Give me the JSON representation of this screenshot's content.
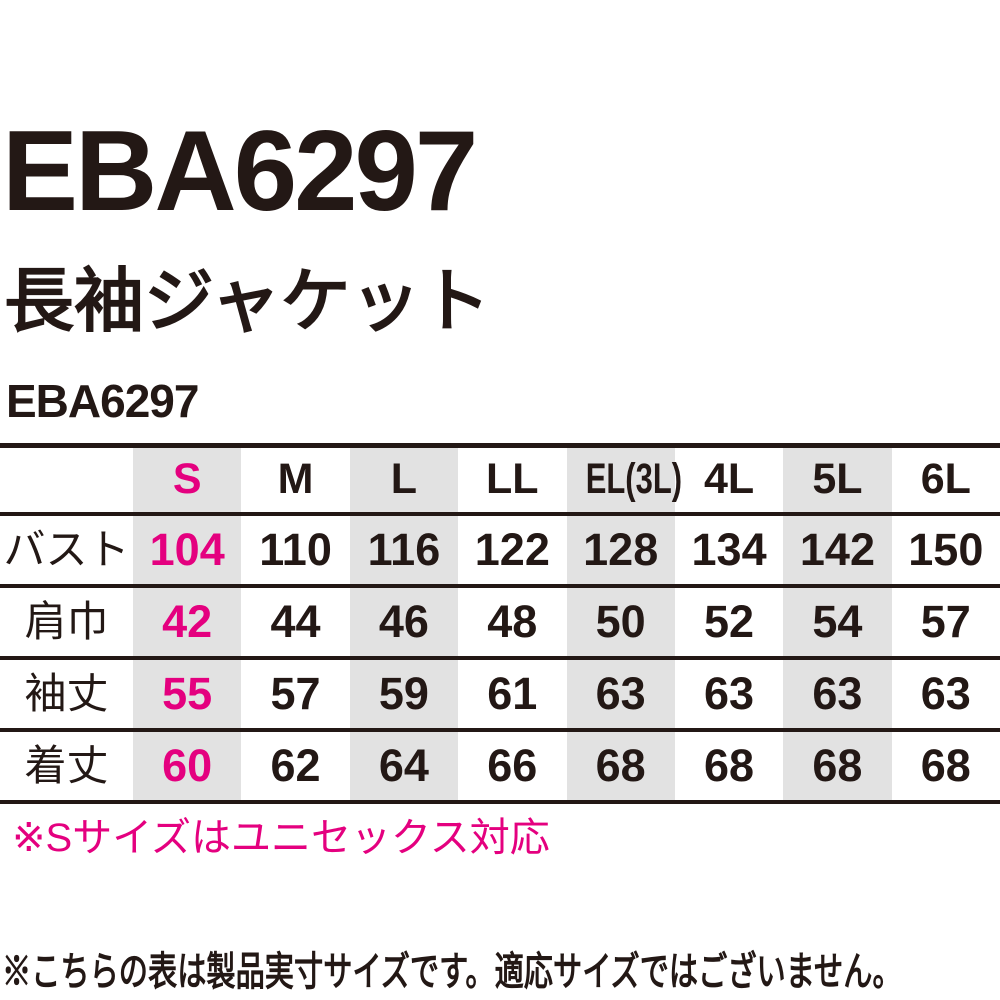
{
  "page": {
    "title_large": "EBA6297",
    "subtitle": "長袖ジャケット",
    "model_code": "EBA6297"
  },
  "colors": {
    "accent_pink": "#e4007f",
    "text_black": "#231815",
    "stripe_gray": "#e2e2e2"
  },
  "size_table": {
    "highlight_column": "S",
    "columns": [
      "S",
      "M",
      "L",
      "LL",
      "EL(3L)",
      "4L",
      "5L",
      "6L"
    ],
    "rows": [
      {
        "label": "バスト",
        "values": [
          "104",
          "110",
          "116",
          "122",
          "128",
          "134",
          "142",
          "150"
        ]
      },
      {
        "label": "肩巾",
        "values": [
          "42",
          "44",
          "46",
          "48",
          "50",
          "52",
          "54",
          "57"
        ]
      },
      {
        "label": "袖丈",
        "values": [
          "55",
          "57",
          "59",
          "61",
          "63",
          "63",
          "63",
          "63"
        ]
      },
      {
        "label": "着丈",
        "values": [
          "60",
          "62",
          "64",
          "66",
          "68",
          "68",
          "68",
          "68"
        ]
      }
    ]
  },
  "notes": {
    "s_size_note": "※Sサイズはユニセックス対応",
    "disclaimer": "※こちらの表は製品実寸サイズです。適応サイズではございません。"
  }
}
